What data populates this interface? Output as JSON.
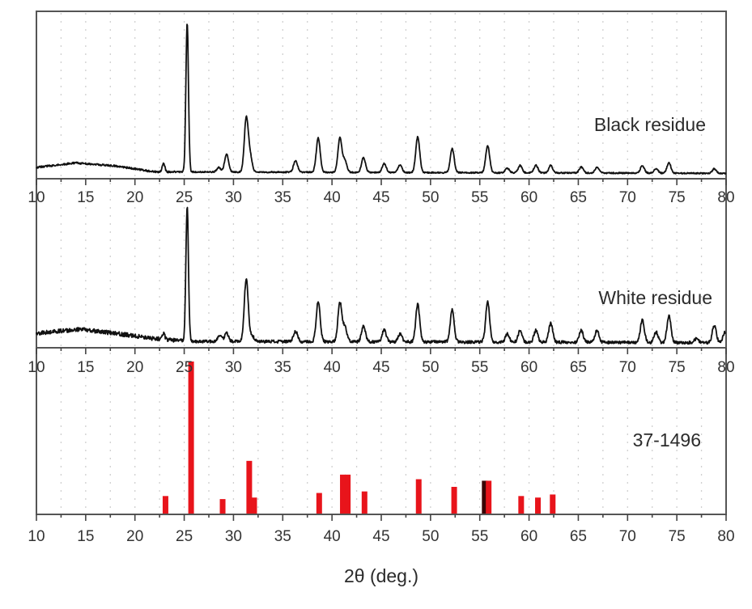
{
  "chart_data": {
    "type": "line",
    "title": "",
    "xlabel": "2θ (deg.)",
    "ylabel": "",
    "xlim": [
      10,
      80
    ],
    "x_ticks": [
      10,
      15,
      20,
      25,
      30,
      35,
      40,
      45,
      50,
      55,
      60,
      65,
      70,
      75,
      80
    ],
    "x_tick_labels": [
      "10",
      "15",
      "20",
      "25",
      "30",
      "35",
      "40",
      "45",
      "50",
      "55",
      "60",
      "65",
      "70",
      "75",
      "80"
    ],
    "grid": "dotted vertical at 2.5° steps",
    "layout": "three vertically stacked panels sharing x-axis",
    "series": [
      {
        "name": "Black residue",
        "panel": 1,
        "kind": "xrd_pattern",
        "color": "#111111",
        "background": [
          [
            10,
            6
          ],
          [
            14,
            9
          ],
          [
            18,
            7
          ],
          [
            22,
            3
          ],
          [
            80,
            2
          ]
        ],
        "peaks_2theta_relative_intensity": [
          [
            22.9,
            6
          ],
          [
            25.3,
            100
          ],
          [
            28.5,
            3
          ],
          [
            29.3,
            12
          ],
          [
            31.3,
            36
          ],
          [
            31.7,
            10
          ],
          [
            36.3,
            8
          ],
          [
            38.6,
            23
          ],
          [
            40.8,
            23
          ],
          [
            41.3,
            8
          ],
          [
            43.2,
            10
          ],
          [
            45.3,
            6
          ],
          [
            46.9,
            5
          ],
          [
            48.7,
            24
          ],
          [
            52.2,
            16
          ],
          [
            55.8,
            18
          ],
          [
            57.8,
            3
          ],
          [
            59.1,
            5
          ],
          [
            60.7,
            5
          ],
          [
            62.2,
            5
          ],
          [
            65.3,
            4
          ],
          [
            66.9,
            4
          ],
          [
            71.5,
            5
          ],
          [
            72.9,
            3
          ],
          [
            74.2,
            7
          ],
          [
            78.8,
            3
          ]
        ]
      },
      {
        "name": "White residue",
        "panel": 2,
        "kind": "xrd_pattern",
        "color": "#111111",
        "background": [
          [
            10,
            9
          ],
          [
            14.5,
            12
          ],
          [
            18,
            9
          ],
          [
            22,
            5
          ],
          [
            26,
            3
          ],
          [
            80,
            2
          ]
        ],
        "peaks_2theta_relative_intensity": [
          [
            22.9,
            4
          ],
          [
            25.3,
            100
          ],
          [
            28.6,
            4
          ],
          [
            29.3,
            6
          ],
          [
            31.3,
            47
          ],
          [
            31.9,
            4
          ],
          [
            36.3,
            8
          ],
          [
            38.6,
            30
          ],
          [
            40.8,
            29
          ],
          [
            41.3,
            11
          ],
          [
            43.2,
            12
          ],
          [
            45.3,
            9
          ],
          [
            46.9,
            6
          ],
          [
            48.7,
            28
          ],
          [
            52.2,
            24
          ],
          [
            55.8,
            30
          ],
          [
            57.8,
            6
          ],
          [
            59.1,
            9
          ],
          [
            60.7,
            9
          ],
          [
            62.2,
            14
          ],
          [
            65.3,
            9
          ],
          [
            66.9,
            9
          ],
          [
            71.5,
            17
          ],
          [
            72.9,
            8
          ],
          [
            74.2,
            20
          ],
          [
            77.0,
            3
          ],
          [
            78.8,
            13
          ],
          [
            79.9,
            8
          ]
        ]
      },
      {
        "name": "37-1496",
        "panel": 3,
        "kind": "reference_sticks",
        "color": "#e8141b",
        "sticks_2theta_relative_intensity": [
          [
            23.1,
            12
          ],
          [
            25.7,
            100
          ],
          [
            28.9,
            10
          ],
          [
            31.6,
            35
          ],
          [
            32.1,
            11
          ],
          [
            38.7,
            14
          ],
          [
            41.1,
            26
          ],
          [
            41.6,
            26
          ],
          [
            43.3,
            15
          ],
          [
            48.8,
            23
          ],
          [
            52.4,
            18
          ],
          [
            55.5,
            22
          ],
          [
            55.9,
            22
          ],
          [
            59.2,
            12
          ],
          [
            60.9,
            11
          ],
          [
            62.4,
            13
          ]
        ]
      }
    ],
    "legend": "inline panel labels (no legend box)"
  },
  "panels": [
    {
      "label": "Black residue"
    },
    {
      "label": "White residue"
    },
    {
      "label": "37-1496"
    }
  ],
  "axis": {
    "title": "2θ (deg.)"
  }
}
